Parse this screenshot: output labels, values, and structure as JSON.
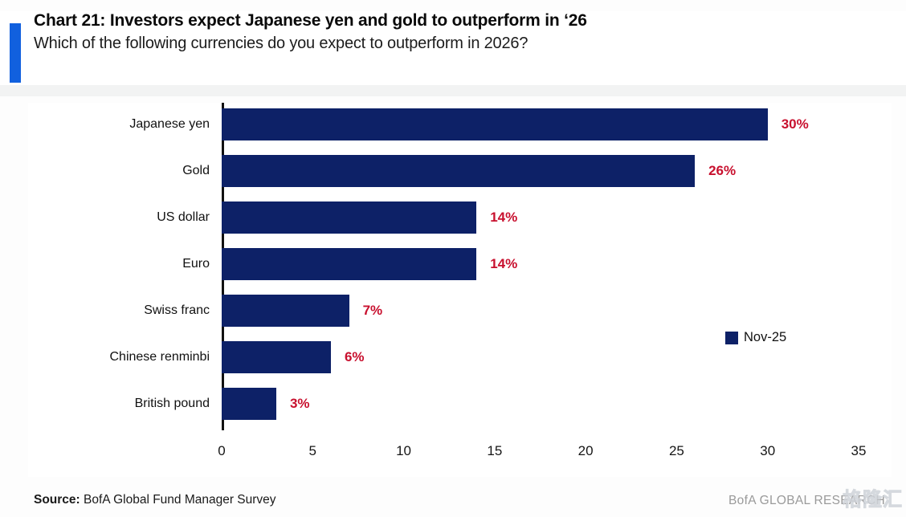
{
  "header": {
    "title": "Chart 21: Investors expect Japanese yen and gold to outperform in ‘26",
    "subtitle": "Which of the following currencies do you expect to outperform in 2026?"
  },
  "chart_data": {
    "type": "bar",
    "orientation": "horizontal",
    "title": "Chart 21: Investors expect Japanese yen and gold to outperform in ‘26",
    "subtitle": "Which of the following currencies do you expect to outperform in 2026?",
    "categories": [
      "Japanese yen",
      "Gold",
      "US dollar",
      "Euro",
      "Swiss franc",
      "Chinese renminbi",
      "British pound"
    ],
    "values": [
      30,
      26,
      14,
      14,
      7,
      6,
      3
    ],
    "value_labels": [
      "30%",
      "26%",
      "14%",
      "14%",
      "7%",
      "6%",
      "3%"
    ],
    "series": [
      {
        "name": "Nov-25",
        "values": [
          30,
          26,
          14,
          14,
          7,
          6,
          3
        ]
      }
    ],
    "xlim": [
      0,
      35
    ],
    "x_ticks": [
      0,
      5,
      10,
      15,
      20,
      25,
      30,
      35
    ],
    "grid": false,
    "legend": {
      "label": "Nov-25",
      "position": "middle-right"
    },
    "colors": {
      "bar": "#0D2167",
      "value_label": "#C8102E",
      "accent": "#1160DE"
    }
  },
  "footer": {
    "source_label": "Source:",
    "source_text": " BofA Global Fund Manager Survey",
    "brand": "BofA GLOBAL RESEARCH",
    "watermark": "格隆汇"
  }
}
